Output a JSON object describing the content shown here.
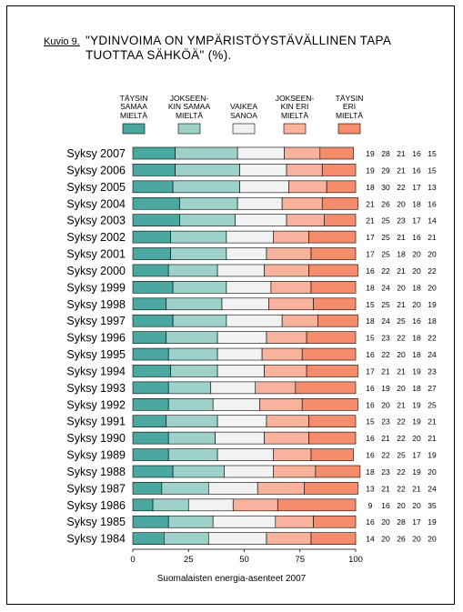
{
  "figure_label": "Kuvio 9.",
  "title": "\"YDINVOIMA ON YMPÄRISTÖYSTÄVÄLLINEN TAPA\nTUOTTAA SÄHKÖÄ\" (%).",
  "source": "Suomalaisten energia-asenteet 2007",
  "colors": [
    "#4ba8a0",
    "#9ed1ca",
    "#f2f2f2",
    "#f9b29c",
    "#f58c6c"
  ],
  "chart_data": {
    "type": "bar",
    "stacked": true,
    "orientation": "horizontal",
    "xlim": [
      0,
      100
    ],
    "xticks": [
      "0",
      "25",
      "50",
      "75",
      "100"
    ],
    "legend": [
      "TÄYSIN\nSAMAA\nMIELTÄ",
      "JOKSEEN-\nKIN SAMAA\nMIELTÄ",
      "VAIKEA\nSANOA",
      "JOKSEEN-\nKIN ERI\nMIELTÄ",
      "TÄYSIN\nERI\nMIELTÄ"
    ],
    "categories": [
      "Syksy 2007",
      "Syksy 2006",
      "Syksy 2005",
      "Syksy 2004",
      "Syksy 2003",
      "Syksy 2002",
      "Syksy 2001",
      "Syksy 2000",
      "Syksy 1999",
      "Syksy 1998",
      "Syksy 1997",
      "Syksy 1996",
      "Syksy 1995",
      "Syksy 1994",
      "Syksy 1993",
      "Syksy 1992",
      "Syksy 1991",
      "Syksy 1990",
      "Syksy 1989",
      "Syksy 1988",
      "Syksy 1987",
      "Syksy 1986",
      "Syksy 1985",
      "Syksy 1984"
    ],
    "values": [
      [
        19,
        28,
        21,
        16,
        15
      ],
      [
        19,
        29,
        21,
        16,
        15
      ],
      [
        18,
        30,
        22,
        17,
        13
      ],
      [
        21,
        26,
        20,
        18,
        16
      ],
      [
        21,
        25,
        23,
        17,
        14
      ],
      [
        17,
        25,
        21,
        16,
        21
      ],
      [
        17,
        25,
        18,
        20,
        20
      ],
      [
        16,
        22,
        21,
        20,
        22
      ],
      [
        18,
        24,
        20,
        18,
        20
      ],
      [
        15,
        25,
        21,
        20,
        19
      ],
      [
        18,
        24,
        25,
        16,
        18
      ],
      [
        15,
        23,
        22,
        18,
        22
      ],
      [
        16,
        22,
        20,
        18,
        24
      ],
      [
        17,
        21,
        21,
        19,
        23
      ],
      [
        16,
        19,
        20,
        18,
        27
      ],
      [
        16,
        20,
        21,
        19,
        25
      ],
      [
        15,
        23,
        22,
        19,
        21
      ],
      [
        16,
        21,
        22,
        20,
        21
      ],
      [
        16,
        22,
        25,
        17,
        19
      ],
      [
        18,
        23,
        22,
        19,
        20
      ],
      [
        13,
        21,
        22,
        21,
        24
      ],
      [
        9,
        16,
        20,
        20,
        35
      ],
      [
        16,
        20,
        28,
        17,
        19
      ],
      [
        14,
        20,
        26,
        20,
        20
      ]
    ]
  }
}
